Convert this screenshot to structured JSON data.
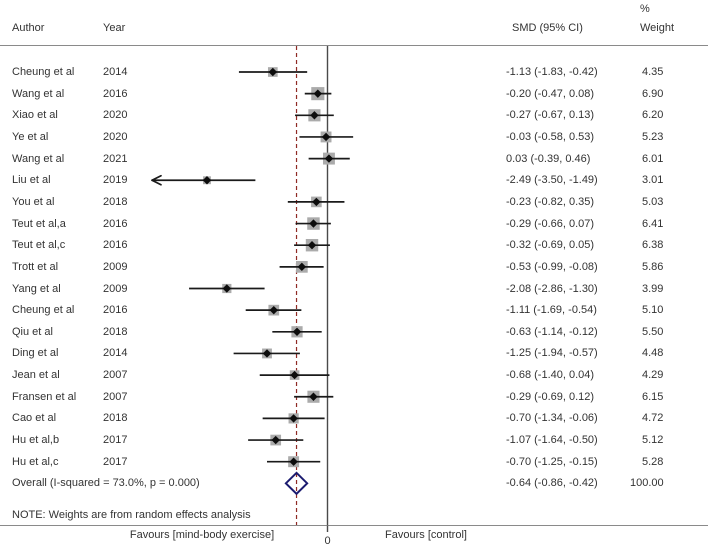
{
  "columns": {
    "author": "Author",
    "year": "Year",
    "smd": "SMD (95% CI)",
    "percent": "%",
    "weight": "Weight"
  },
  "colors": {
    "text": "#333333",
    "ci_line": "#1a1a1a",
    "marker": "#0d0d0d",
    "weight_box": "#ababab",
    "reference_line": "#4a4a4a",
    "overall_dashed_line": "#8f2a24",
    "overall_diamond": "#1b1b70",
    "frame_line": "#8a8a8a"
  },
  "chart_data": {
    "type": "scatter",
    "variant": "forest-plot",
    "effect_measure": "SMD",
    "x_axis": {
      "zero_label": "0",
      "reference_value": 0,
      "overall_estimate": -0.64,
      "visible_range": [
        -3.62,
        1.05
      ],
      "left_label": "Favours [mind-body exercise]",
      "right_label": "Favours [control]"
    },
    "studies": [
      {
        "author": "Cheung et al",
        "year": "2014",
        "est": -1.13,
        "lo": -1.83,
        "hi": -0.42,
        "smd_label": "-1.13 (-1.83, -0.42)",
        "weight": 4.35,
        "weight_label": "4.35",
        "arrow_low": false
      },
      {
        "author": "Wang et al",
        "year": "2016",
        "est": -0.2,
        "lo": -0.47,
        "hi": 0.08,
        "smd_label": "-0.20 (-0.47, 0.08)",
        "weight": 6.9,
        "weight_label": "6.90",
        "arrow_low": false
      },
      {
        "author": "Xiao et al",
        "year": "2020",
        "est": -0.27,
        "lo": -0.67,
        "hi": 0.13,
        "smd_label": "-0.27 (-0.67, 0.13)",
        "weight": 6.2,
        "weight_label": "6.20",
        "arrow_low": false
      },
      {
        "author": "Ye et al",
        "year": "2020",
        "est": -0.03,
        "lo": -0.58,
        "hi": 0.53,
        "smd_label": "-0.03 (-0.58, 0.53)",
        "weight": 5.23,
        "weight_label": "5.23",
        "arrow_low": false
      },
      {
        "author": "Wang et al",
        "year": "2021",
        "est": 0.03,
        "lo": -0.39,
        "hi": 0.46,
        "smd_label": "0.03 (-0.39, 0.46)",
        "weight": 6.01,
        "weight_label": "6.01",
        "arrow_low": false
      },
      {
        "author": "Liu et al",
        "year": "2019",
        "est": -2.49,
        "lo": -3.5,
        "hi": -1.49,
        "smd_label": "-2.49 (-3.50, -1.49)",
        "weight": 3.01,
        "weight_label": "3.01",
        "arrow_low": true
      },
      {
        "author": "You et al",
        "year": "2018",
        "est": -0.23,
        "lo": -0.82,
        "hi": 0.35,
        "smd_label": "-0.23 (-0.82, 0.35)",
        "weight": 5.03,
        "weight_label": "5.03",
        "arrow_low": false
      },
      {
        "author": "Teut et al,a",
        "year": "2016",
        "est": -0.29,
        "lo": -0.66,
        "hi": 0.07,
        "smd_label": "-0.29 (-0.66, 0.07)",
        "weight": 6.41,
        "weight_label": "6.41",
        "arrow_low": false
      },
      {
        "author": "Teut et al,c",
        "year": "2016",
        "est": -0.32,
        "lo": -0.69,
        "hi": 0.05,
        "smd_label": "-0.32 (-0.69, 0.05)",
        "weight": 6.38,
        "weight_label": "6.38",
        "arrow_low": false
      },
      {
        "author": "Trott et al",
        "year": "2009",
        "est": -0.53,
        "lo": -0.99,
        "hi": -0.08,
        "smd_label": "-0.53 (-0.99, -0.08)",
        "weight": 5.86,
        "weight_label": "5.86",
        "arrow_low": false
      },
      {
        "author": "Yang et al",
        "year": "2009",
        "est": -2.08,
        "lo": -2.86,
        "hi": -1.3,
        "smd_label": "-2.08 (-2.86, -1.30)",
        "weight": 3.99,
        "weight_label": "3.99",
        "arrow_low": false
      },
      {
        "author": "Cheung et al",
        "year": "2016",
        "est": -1.11,
        "lo": -1.69,
        "hi": -0.54,
        "smd_label": "-1.11 (-1.69, -0.54)",
        "weight": 5.1,
        "weight_label": "5.10",
        "arrow_low": false
      },
      {
        "author": "Qiu et al",
        "year": "2018",
        "est": -0.63,
        "lo": -1.14,
        "hi": -0.12,
        "smd_label": "-0.63 (-1.14, -0.12)",
        "weight": 5.5,
        "weight_label": "5.50",
        "arrow_low": false
      },
      {
        "author": "Ding et al",
        "year": "2014",
        "est": -1.25,
        "lo": -1.94,
        "hi": -0.57,
        "smd_label": "-1.25 (-1.94, -0.57)",
        "weight": 4.48,
        "weight_label": "4.48",
        "arrow_low": false
      },
      {
        "author": "Jean et al",
        "year": "2007",
        "est": -0.68,
        "lo": -1.4,
        "hi": 0.04,
        "smd_label": "-0.68 (-1.40, 0.04)",
        "weight": 4.29,
        "weight_label": "4.29",
        "arrow_low": false
      },
      {
        "author": "Fransen et al",
        "year": "2007",
        "est": -0.29,
        "lo": -0.69,
        "hi": 0.12,
        "smd_label": "-0.29 (-0.69, 0.12)",
        "weight": 6.15,
        "weight_label": "6.15",
        "arrow_low": false
      },
      {
        "author": "Cao et al",
        "year": "2018",
        "est": -0.7,
        "lo": -1.34,
        "hi": -0.06,
        "smd_label": "-0.70 (-1.34, -0.06)",
        "weight": 4.72,
        "weight_label": "4.72",
        "arrow_low": false
      },
      {
        "author": "Hu et al,b",
        "year": "2017",
        "est": -1.07,
        "lo": -1.64,
        "hi": -0.5,
        "smd_label": "-1.07 (-1.64, -0.50)",
        "weight": 5.12,
        "weight_label": "5.12",
        "arrow_low": false
      },
      {
        "author": "Hu et al,c",
        "year": "2017",
        "est": -0.7,
        "lo": -1.25,
        "hi": -0.15,
        "smd_label": "-0.70 (-1.25, -0.15)",
        "weight": 5.28,
        "weight_label": "5.28",
        "arrow_low": false
      }
    ],
    "overall": {
      "label": "Overall  (I-squared = 73.0%, p = 0.000)",
      "est": -0.64,
      "lo": -0.86,
      "hi": -0.42,
      "smd_label": "-0.64 (-0.86, -0.42)",
      "weight_label": "100.00"
    },
    "note": "NOTE: Weights are from random effects analysis"
  }
}
